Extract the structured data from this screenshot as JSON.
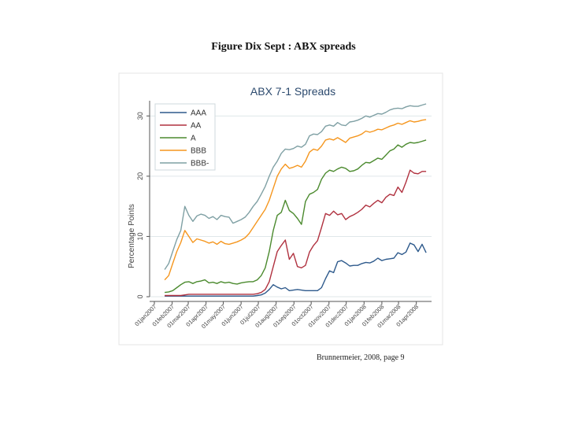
{
  "figure_caption": "Figure Dix Sept : ABX spreads",
  "source_note": "Brunnermeier, 2008, page 9",
  "chart_data": {
    "type": "line",
    "title": "ABX 7-1 Spreads",
    "ylabel": "Percentage Points",
    "xlabel": "",
    "ylim": [
      0,
      32
    ],
    "yticks": [
      0,
      10,
      20,
      30
    ],
    "x_tick_labels": [
      "01jan2007",
      "01feb2007",
      "01mar2007",
      "01apr2007",
      "01may2007",
      "01jun2007",
      "01jul2007",
      "01aug2007",
      "01sep2007",
      "01oct2007",
      "01nov2007",
      "01dec2007",
      "01jan2008",
      "01feb2008",
      "01mar2008",
      "01apr2008"
    ],
    "x_start_label": "01jan2007",
    "grid": true,
    "legend_position": "top-left",
    "x": [
      "2007-01-19",
      "2007-01-26",
      "2007-02-02",
      "2007-02-09",
      "2007-02-16",
      "2007-02-23",
      "2007-03-02",
      "2007-03-09",
      "2007-03-16",
      "2007-03-23",
      "2007-03-30",
      "2007-04-06",
      "2007-04-13",
      "2007-04-20",
      "2007-04-27",
      "2007-05-04",
      "2007-05-11",
      "2007-05-18",
      "2007-05-25",
      "2007-06-01",
      "2007-06-08",
      "2007-06-15",
      "2007-06-22",
      "2007-06-29",
      "2007-07-06",
      "2007-07-13",
      "2007-07-20",
      "2007-07-27",
      "2007-08-03",
      "2007-08-10",
      "2007-08-17",
      "2007-08-24",
      "2007-08-31",
      "2007-09-07",
      "2007-09-14",
      "2007-09-21",
      "2007-09-28",
      "2007-10-05",
      "2007-10-12",
      "2007-10-19",
      "2007-10-26",
      "2007-11-02",
      "2007-11-09",
      "2007-11-16",
      "2007-11-23",
      "2007-11-30",
      "2007-12-07",
      "2007-12-14",
      "2007-12-21",
      "2007-12-28",
      "2008-01-04",
      "2008-01-11",
      "2008-01-18",
      "2008-01-25",
      "2008-02-01",
      "2008-02-08",
      "2008-02-15",
      "2008-02-22",
      "2008-02-29",
      "2008-03-07",
      "2008-03-14",
      "2008-03-21",
      "2008-03-28",
      "2008-04-04",
      "2008-04-11",
      "2008-04-18"
    ],
    "series": [
      {
        "name": "AAA",
        "color": "#2e5a8c",
        "values": [
          0.1,
          0.1,
          0.1,
          0.1,
          0.1,
          0.1,
          0.1,
          0.1,
          0.1,
          0.1,
          0.1,
          0.1,
          0.1,
          0.1,
          0.1,
          0.1,
          0.1,
          0.1,
          0.1,
          0.1,
          0.1,
          0.1,
          0.1,
          0.2,
          0.3,
          0.6,
          1.2,
          2.0,
          1.6,
          1.3,
          1.5,
          1.0,
          1.1,
          1.2,
          1.1,
          1.0,
          1.0,
          1.0,
          1.0,
          1.5,
          3.0,
          4.3,
          4.0,
          5.8,
          6.0,
          5.6,
          5.1,
          5.2,
          5.2,
          5.5,
          5.7,
          5.6,
          5.9,
          6.4,
          6.0,
          6.2,
          6.3,
          6.4,
          7.3,
          7.0,
          7.4,
          8.9,
          8.6,
          7.5,
          8.7,
          7.3
        ]
      },
      {
        "name": "AA",
        "color": "#b0313f",
        "values": [
          0.2,
          0.2,
          0.2,
          0.2,
          0.2,
          0.3,
          0.4,
          0.4,
          0.4,
          0.4,
          0.4,
          0.4,
          0.4,
          0.4,
          0.4,
          0.4,
          0.4,
          0.4,
          0.4,
          0.4,
          0.4,
          0.4,
          0.4,
          0.5,
          0.7,
          1.2,
          2.5,
          5.0,
          7.5,
          8.5,
          9.4,
          6.2,
          7.2,
          5.0,
          4.8,
          5.2,
          7.4,
          8.5,
          9.3,
          11.5,
          13.8,
          13.5,
          14.2,
          13.6,
          13.8,
          12.8,
          13.3,
          13.6,
          14.0,
          14.5,
          15.2,
          14.9,
          15.5,
          16.0,
          15.6,
          16.5,
          17.0,
          16.8,
          18.2,
          17.3,
          19.0,
          21.0,
          20.5,
          20.4,
          20.8,
          20.8
        ]
      },
      {
        "name": "A",
        "color": "#4b8a2e",
        "values": [
          0.7,
          0.8,
          1.0,
          1.5,
          2.0,
          2.4,
          2.5,
          2.2,
          2.5,
          2.6,
          2.8,
          2.3,
          2.4,
          2.2,
          2.5,
          2.3,
          2.4,
          2.2,
          2.1,
          2.3,
          2.4,
          2.5,
          2.5,
          2.8,
          3.5,
          4.8,
          7.5,
          11.0,
          13.5,
          14.0,
          16.0,
          14.3,
          13.8,
          13.0,
          12.0,
          15.8,
          17.0,
          17.3,
          17.8,
          19.5,
          20.5,
          21.0,
          20.8,
          21.2,
          21.5,
          21.3,
          20.8,
          20.9,
          21.2,
          21.8,
          22.3,
          22.2,
          22.6,
          23.0,
          22.8,
          23.5,
          24.2,
          24.5,
          25.2,
          24.8,
          25.3,
          25.6,
          25.5,
          25.6,
          25.8,
          26.0
        ]
      },
      {
        "name": "BBB",
        "color": "#f5961e",
        "values": [
          2.8,
          3.5,
          5.5,
          7.5,
          9.0,
          11.0,
          10.0,
          9.0,
          9.6,
          9.4,
          9.2,
          8.9,
          9.1,
          8.7,
          9.2,
          8.8,
          8.7,
          8.9,
          9.1,
          9.4,
          9.8,
          10.5,
          11.5,
          12.5,
          13.5,
          14.5,
          16.0,
          18.0,
          20.0,
          21.2,
          22.0,
          21.3,
          21.5,
          21.8,
          21.5,
          22.5,
          24.0,
          24.5,
          24.3,
          25.0,
          26.0,
          26.2,
          26.0,
          26.4,
          26.0,
          25.6,
          26.3,
          26.5,
          26.7,
          27.0,
          27.5,
          27.3,
          27.5,
          27.8,
          27.7,
          28.0,
          28.3,
          28.5,
          28.8,
          28.6,
          28.9,
          29.2,
          29.0,
          29.1,
          29.3,
          29.4
        ]
      },
      {
        "name": "BBB-",
        "color": "#7fa0a4",
        "values": [
          4.5,
          5.5,
          7.5,
          9.5,
          11.0,
          15.0,
          13.5,
          12.5,
          13.4,
          13.7,
          13.5,
          13.0,
          13.3,
          12.8,
          13.5,
          13.3,
          13.2,
          12.2,
          12.5,
          12.8,
          13.2,
          14.0,
          15.0,
          15.8,
          17.0,
          18.3,
          20.0,
          21.5,
          22.5,
          23.8,
          24.5,
          24.4,
          24.6,
          25.0,
          24.8,
          25.3,
          26.7,
          27.0,
          26.9,
          27.4,
          28.3,
          28.5,
          28.3,
          28.9,
          28.5,
          28.4,
          29.0,
          29.1,
          29.3,
          29.6,
          30.0,
          29.8,
          30.1,
          30.4,
          30.3,
          30.6,
          31.0,
          31.2,
          31.3,
          31.2,
          31.5,
          31.7,
          31.6,
          31.6,
          31.8,
          32.0
        ]
      }
    ]
  }
}
